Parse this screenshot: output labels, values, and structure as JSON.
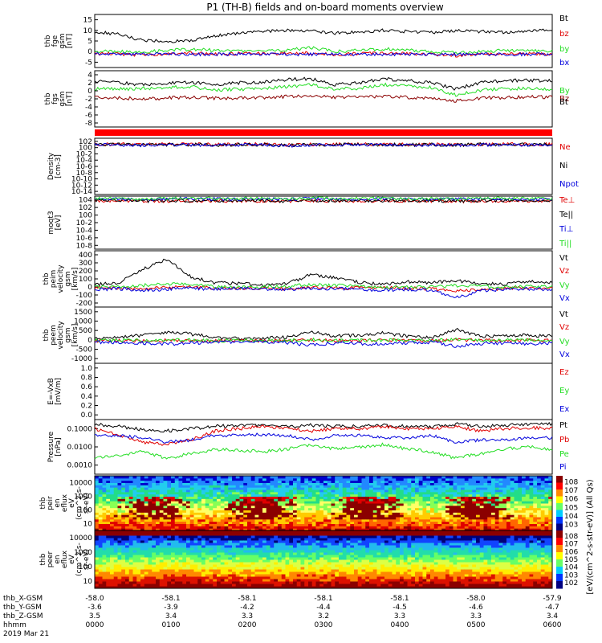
{
  "title": "P1 (TH-B) fields and on-board moments overview",
  "date_label": "2019 Mar 21",
  "time_labels": [
    "0000",
    "0100",
    "0200",
    "0300",
    "0400",
    "0500",
    "0600"
  ],
  "axis_rows": [
    {
      "label": "thb_X-GSM",
      "values": [
        "-58.0",
        "-58.1",
        "-58.1",
        "-58.1",
        "-58.1",
        "-58.0",
        "-57.9"
      ]
    },
    {
      "label": "thb_Y-GSM",
      "values": [
        "-3.6",
        "-3.9",
        "-4.2",
        "-4.4",
        "-4.5",
        "-4.6",
        "-4.7"
      ]
    },
    {
      "label": "thb_Z-GSM",
      "values": [
        "3.5",
        "3.4",
        "3.3",
        "3.2",
        "3.3",
        "3.3",
        "3.4"
      ]
    },
    {
      "label": "hhmm",
      "values": [
        "0000",
        "0100",
        "0200",
        "0300",
        "0400",
        "0500",
        "0600"
      ]
    }
  ],
  "colorbar_label": "[eV/(cm^2-s-str-eV)] (All Qs)",
  "colors": {
    "black": "#000000",
    "red": "#e00000",
    "green": "#22dd22",
    "blue": "#0000dd",
    "dark_red": "#8b0000"
  },
  "chart_data": [
    {
      "type": "line",
      "ylabel_lines": [
        "thb",
        "fge",
        "gsm",
        "[nT]"
      ],
      "yticks": [
        "15",
        "10",
        "5",
        "0",
        "-5"
      ],
      "ylim": [
        -5,
        15
      ],
      "series": [
        {
          "name": "Bt",
          "color": "black",
          "values": [
            8.5,
            7.5,
            5.2,
            4.8,
            5.2,
            7.0,
            8.0,
            8.7,
            9.0,
            8.8,
            8.0,
            8.3,
            9.0,
            8.5,
            8.2,
            9.0,
            8.6,
            8.2,
            8.8,
            9.0
          ]
        },
        {
          "name": "bz",
          "color": "red",
          "values": [
            0.2,
            0.1,
            -0.3,
            0.2,
            0.4,
            0.0,
            0.3,
            0.2,
            0.4,
            0.5,
            -0.2,
            0.3,
            0.4,
            0.2,
            0.0,
            -0.5,
            0.0,
            0.2,
            0.1,
            0.0
          ]
        },
        {
          "name": "by",
          "color": "green",
          "values": [
            1.2,
            1.0,
            0.8,
            1.5,
            1.8,
            1.5,
            1.2,
            1.3,
            1.6,
            2.5,
            1.0,
            1.5,
            2.0,
            1.6,
            1.0,
            0.5,
            1.0,
            1.5,
            1.3,
            1.2
          ]
        },
        {
          "name": "bx",
          "color": "blue",
          "values": [
            0.0,
            0.0,
            0.0,
            0.0,
            0.0,
            0.0,
            0.0,
            0.0,
            0.0,
            0.0,
            0.0,
            0.0,
            0.0,
            0.0,
            0.0,
            0.0,
            0.0,
            0.0,
            0.0,
            0.0
          ]
        }
      ]
    },
    {
      "type": "line",
      "ylabel_lines": [
        "thb",
        "fgs",
        "gsm",
        "[nT]"
      ],
      "yticks": [
        "4",
        "2",
        "0",
        "-2",
        "-4",
        "-6",
        "-8"
      ],
      "ylim": [
        -9,
        5
      ],
      "series": [
        {
          "name": "By",
          "color": "green",
          "values": [
            0.5,
            0.4,
            0.6,
            0.8,
            1.0,
            0.2,
            0.4,
            0.6,
            1.0,
            1.5,
            0.5,
            0.6,
            1.5,
            1.2,
            0.8,
            -1.0,
            0.2,
            0.5,
            0.6,
            0.5
          ]
        },
        {
          "name": "Bz",
          "color": "dark_red",
          "values": [
            -1.5,
            -1.8,
            -2.0,
            -1.8,
            -1.6,
            -1.8,
            -1.8,
            -1.7,
            -1.4,
            -1.2,
            -1.6,
            -1.5,
            -1.4,
            -1.6,
            -1.8,
            -2.5,
            -1.8,
            -1.7,
            -1.5,
            -1.6
          ]
        },
        {
          "name": "Bt",
          "color": "black",
          "values": [
            2.5,
            2.0,
            1.5,
            1.8,
            2.2,
            1.5,
            2.0,
            2.2,
            2.8,
            3.0,
            1.5,
            2.0,
            3.0,
            2.5,
            2.0,
            0.5,
            2.0,
            2.5,
            2.6,
            2.5
          ]
        }
      ]
    },
    {
      "type": "line",
      "ylabel_lines": [
        "Density",
        "[cm-3]"
      ],
      "yticks": [
        "10^2",
        "10^0",
        "10^-2",
        "10^-4",
        "10^-6",
        "10^-8",
        "10^-10",
        "10^-12",
        "10^-14"
      ],
      "ylim": [
        -14,
        2
      ],
      "log": true,
      "series": [
        {
          "name": "Ne",
          "color": "red",
          "values": [
            0.3,
            0.3,
            0.2,
            0.3,
            0.3,
            0.2,
            0.3,
            0.3,
            0.1,
            0.2,
            0.3,
            0.3,
            0.3,
            0.2,
            0.3,
            0.2,
            0.3,
            0.3,
            0.3,
            0.3
          ]
        },
        {
          "name": "Ni",
          "color": "black",
          "values": [
            0.2,
            0.2,
            0.1,
            0.2,
            0.2,
            0.1,
            0.2,
            0.2,
            0.0,
            0.1,
            0.2,
            0.2,
            0.2,
            0.1,
            0.2,
            0.1,
            0.2,
            0.2,
            0.2,
            0.2
          ]
        },
        {
          "name": "Npot",
          "color": "blue",
          "values": [
            0.1,
            0.1,
            0.0,
            0.1,
            0.1,
            0.0,
            0.1,
            0.1,
            -0.1,
            0.0,
            0.1,
            0.1,
            0.1,
            0.0,
            0.1,
            0.0,
            0.1,
            0.1,
            0.1,
            0.1
          ]
        }
      ]
    },
    {
      "type": "line",
      "ylabel_lines": [
        "moqt3",
        "[eV]"
      ],
      "yticks": [
        "10^4",
        "10^2",
        "10^0",
        "10^-2",
        "10^-4",
        "10^-6",
        "10^-8"
      ],
      "ylim": [
        -9,
        4
      ],
      "log": true,
      "series": [
        {
          "name": "Te⊥",
          "color": "red",
          "values": [
            2.8,
            2.8,
            2.7,
            2.8,
            2.8,
            2.8,
            2.8,
            2.8,
            2.7,
            2.8,
            2.8,
            2.8,
            2.8,
            2.8,
            2.8,
            2.7,
            2.8,
            2.8,
            2.8,
            2.8
          ]
        },
        {
          "name": "Te||",
          "color": "black",
          "values": [
            2.9,
            2.9,
            2.8,
            2.9,
            2.9,
            2.9,
            2.9,
            2.9,
            2.8,
            2.9,
            2.9,
            2.9,
            2.9,
            2.9,
            2.9,
            2.8,
            2.9,
            2.9,
            2.9,
            2.9
          ]
        },
        {
          "name": "Ti⊥",
          "color": "blue",
          "values": [
            3.3,
            3.3,
            3.2,
            3.3,
            3.4,
            3.3,
            3.3,
            3.3,
            3.2,
            3.4,
            3.3,
            3.3,
            3.4,
            3.3,
            3.3,
            3.2,
            3.3,
            3.4,
            3.3,
            3.3
          ]
        },
        {
          "name": "Ti||",
          "color": "green",
          "values": [
            3.4,
            3.4,
            3.3,
            3.4,
            3.5,
            3.4,
            3.4,
            3.4,
            3.3,
            3.5,
            3.4,
            3.4,
            3.5,
            3.4,
            3.4,
            3.3,
            3.4,
            3.5,
            3.4,
            3.4
          ]
        }
      ]
    },
    {
      "type": "line",
      "ylabel_lines": [
        "thb",
        "peim",
        "velocity",
        "gsm",
        "[km/s]"
      ],
      "yticks": [
        "400",
        "300",
        "200",
        "100",
        "0",
        "-100",
        "-200"
      ],
      "ylim": [
        -200,
        400
      ],
      "series": [
        {
          "name": "Vt",
          "color": "black",
          "values": [
            40,
            60,
            200,
            310,
            120,
            60,
            50,
            30,
            50,
            150,
            110,
            60,
            40,
            70,
            60,
            80,
            50,
            40,
            80,
            60
          ]
        },
        {
          "name": "Vz",
          "color": "red",
          "values": [
            0,
            5,
            -10,
            10,
            20,
            0,
            5,
            0,
            -5,
            10,
            0,
            5,
            5,
            0,
            -5,
            -30,
            -20,
            0,
            5,
            0
          ]
        },
        {
          "name": "Vy",
          "color": "green",
          "values": [
            10,
            20,
            30,
            50,
            40,
            20,
            10,
            15,
            20,
            40,
            30,
            20,
            10,
            20,
            10,
            30,
            20,
            10,
            20,
            15
          ]
        },
        {
          "name": "Vx",
          "color": "blue",
          "values": [
            -10,
            -5,
            -20,
            -10,
            0,
            -5,
            0,
            -5,
            -10,
            0,
            -5,
            -10,
            -20,
            -10,
            -20,
            -100,
            -30,
            -10,
            -5,
            -10
          ]
        }
      ]
    },
    {
      "type": "line",
      "ylabel_lines": [
        "thb",
        "peem",
        "velocity",
        "gsm",
        "[km/s]"
      ],
      "yticks": [
        "1500",
        "1000",
        "500",
        "0",
        "-500",
        "-1000"
      ],
      "ylim": [
        -1000,
        1500
      ],
      "series": [
        {
          "name": "Vt",
          "color": "black",
          "values": [
            100,
            150,
            250,
            400,
            300,
            150,
            100,
            120,
            150,
            400,
            200,
            250,
            350,
            200,
            150,
            500,
            200,
            200,
            250,
            200
          ]
        },
        {
          "name": "Vz",
          "color": "red",
          "values": [
            0,
            10,
            -20,
            30,
            10,
            0,
            20,
            0,
            10,
            40,
            0,
            20,
            30,
            10,
            0,
            50,
            20,
            10,
            20,
            10
          ]
        },
        {
          "name": "Vy",
          "color": "green",
          "values": [
            10,
            20,
            10,
            40,
            20,
            10,
            20,
            10,
            20,
            50,
            10,
            20,
            30,
            20,
            10,
            60,
            20,
            20,
            30,
            20
          ]
        },
        {
          "name": "Vx",
          "color": "blue",
          "values": [
            -50,
            -80,
            -100,
            -150,
            -100,
            -50,
            -60,
            -40,
            -80,
            -200,
            -100,
            -120,
            -150,
            -80,
            -60,
            -250,
            -120,
            -100,
            -150,
            -100
          ]
        }
      ]
    },
    {
      "type": "line",
      "ylabel_lines": [
        "E=-VxB",
        "[mV/m]"
      ],
      "yticks": [
        "1.0",
        "0.8",
        "0.6",
        "0.4",
        "0.2",
        "0.0"
      ],
      "ylim": [
        0,
        1
      ],
      "series": [
        {
          "name": "Ez",
          "color": "red",
          "values": []
        },
        {
          "name": "Ey",
          "color": "green",
          "values": []
        },
        {
          "name": "Ex",
          "color": "blue",
          "values": []
        }
      ]
    },
    {
      "type": "line",
      "ylabel_lines": [
        "Pressure",
        "[nPa]"
      ],
      "yticks": [
        "0.1000",
        "0.0100",
        "0.0010"
      ],
      "ylim": [
        -3.3,
        -0.9
      ],
      "log": true,
      "series": [
        {
          "name": "Pt",
          "color": "black",
          "values": [
            -1.1,
            -1.2,
            -1.35,
            -1.4,
            -1.3,
            -1.2,
            -1.15,
            -1.15,
            -1.2,
            -1.15,
            -1.2,
            -1.2,
            -1.15,
            -1.2,
            -1.2,
            -1.1,
            -1.2,
            -1.15,
            -1.1,
            -1.1
          ]
        },
        {
          "name": "Pb",
          "color": "red",
          "values": [
            -1.3,
            -1.6,
            -1.9,
            -2.0,
            -1.8,
            -1.4,
            -1.3,
            -1.2,
            -1.3,
            -1.4,
            -1.3,
            -1.3,
            -1.2,
            -1.3,
            -1.3,
            -1.2,
            -1.4,
            -1.3,
            -1.25,
            -1.3
          ]
        },
        {
          "name": "Pe",
          "color": "green",
          "values": [
            -2.6,
            -2.5,
            -2.3,
            -2.6,
            -2.4,
            -2.2,
            -2.25,
            -2.3,
            -2.2,
            -2.0,
            -2.2,
            -2.1,
            -2.0,
            -2.2,
            -2.3,
            -2.6,
            -2.4,
            -2.2,
            -2.1,
            -2.2
          ]
        },
        {
          "name": "Pi",
          "color": "blue",
          "values": [
            -1.6,
            -1.6,
            -1.7,
            -1.9,
            -1.8,
            -1.6,
            -1.6,
            -1.55,
            -1.6,
            -1.8,
            -1.6,
            -1.6,
            -1.7,
            -1.7,
            -1.6,
            -1.9,
            -1.8,
            -1.8,
            -1.7,
            -1.7
          ]
        }
      ]
    },
    {
      "type": "heatmap",
      "ylabel_lines": [
        "thb",
        "peir",
        "en",
        "eflux",
        "eV",
        "(cm^2-s-",
        "sr-eV)"
      ],
      "yticks": [
        "10000",
        "1000",
        "100",
        "10"
      ],
      "ylim": [
        1,
        4.3
      ],
      "log": true,
      "colorbar_ticks": [
        "10^8",
        "10^7",
        "10^6",
        "10^5",
        "10^4",
        "10^3"
      ]
    },
    {
      "type": "heatmap",
      "ylabel_lines": [
        "thb",
        "peer",
        "en",
        "eflux",
        "eV",
        "(cm^2-s-",
        "sr-eV)"
      ],
      "yticks": [
        "10000",
        "1000",
        "100",
        "10"
      ],
      "ylim": [
        0.8,
        4.3
      ],
      "log": true,
      "colorbar_ticks": [
        "10^8",
        "10^7",
        "10^6",
        "10^5",
        "10^4",
        "10^3",
        "10^2"
      ]
    }
  ]
}
